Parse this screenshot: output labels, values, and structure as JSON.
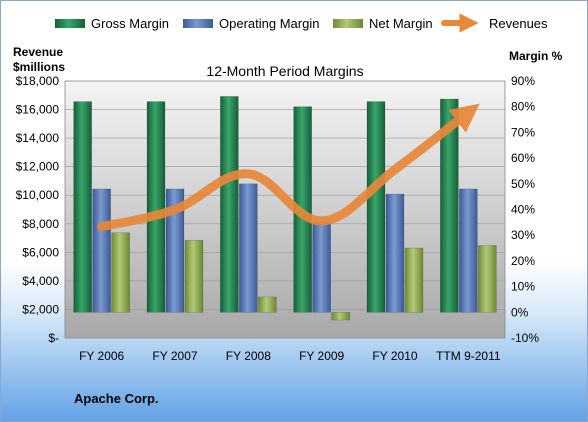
{
  "chart_data": {
    "type": "bar",
    "title": "12-Month Period Margins",
    "categories": [
      "FY 2006",
      "FY 2007",
      "FY 2008",
      "FY 2009",
      "FY 2010",
      "TTM 9-2011"
    ],
    "series": [
      {
        "name": "Gross Margin",
        "axis": "right",
        "values": [
          82,
          82,
          84,
          80,
          82,
          83
        ],
        "color": "#1e7a45"
      },
      {
        "name": "Operating Margin",
        "axis": "right",
        "values": [
          48,
          48,
          50,
          35,
          46,
          48
        ],
        "color": "#4f6fb0"
      },
      {
        "name": "Net Margin",
        "axis": "right",
        "values": [
          31,
          28,
          6,
          -3,
          25,
          26
        ],
        "color": "#8aa84a"
      },
      {
        "name": "Revenues",
        "type": "line",
        "axis": "left",
        "values": [
          7800,
          9000,
          11500,
          8200,
          11800,
          15800
        ],
        "color": "#e8873a"
      }
    ],
    "left_axis": {
      "title_line1": "Revenue",
      "title_line2": "$millions",
      "ylim": [
        0,
        18000
      ],
      "ticks": [
        0,
        2000,
        4000,
        6000,
        8000,
        10000,
        12000,
        14000,
        16000,
        18000
      ],
      "tick_labels": [
        "$-",
        "$2,000",
        "$4,000",
        "$6,000",
        "$8,000",
        "$10,000",
        "$12,000",
        "$14,000",
        "$16,000",
        "$18,000"
      ]
    },
    "right_axis": {
      "title": "Margin %",
      "ylim": [
        -10,
        90
      ],
      "ticks": [
        -10,
        0,
        10,
        20,
        30,
        40,
        50,
        60,
        70,
        80,
        90
      ],
      "tick_labels": [
        "-10%",
        "0%",
        "10%",
        "20%",
        "30%",
        "40%",
        "50%",
        "60%",
        "70%",
        "80%",
        "90%"
      ]
    },
    "legend_position": "top",
    "grid": true
  },
  "company": "Apache Corp."
}
